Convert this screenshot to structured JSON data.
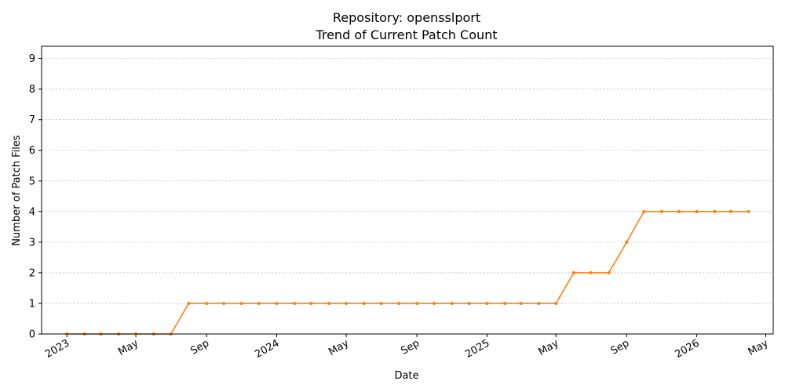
{
  "chart_data": {
    "type": "line",
    "title": "Repository: opensslport",
    "subtitle": "Trend of Current Patch Count",
    "xlabel": "Date",
    "ylabel": "Number of Patch Files",
    "ylim": [
      0,
      9.4
    ],
    "yticks": [
      0,
      1,
      2,
      3,
      4,
      5,
      6,
      7,
      8,
      9
    ],
    "xlim": [
      "2022-11-18",
      "2026-05-14"
    ],
    "xticks": [
      {
        "date": "2023-01-01",
        "label": "2023"
      },
      {
        "date": "2023-05-01",
        "label": "May"
      },
      {
        "date": "2023-09-01",
        "label": "Sep"
      },
      {
        "date": "2024-01-01",
        "label": "2024"
      },
      {
        "date": "2024-05-01",
        "label": "May"
      },
      {
        "date": "2024-09-01",
        "label": "Sep"
      },
      {
        "date": "2025-01-01",
        "label": "2025"
      },
      {
        "date": "2025-05-01",
        "label": "May"
      },
      {
        "date": "2025-09-01",
        "label": "Sep"
      },
      {
        "date": "2026-01-01",
        "label": "2026"
      },
      {
        "date": "2026-05-01",
        "label": "May"
      }
    ],
    "grid": "y-dashed",
    "series": [
      {
        "color": "#ff7f0e",
        "points": [
          {
            "x": "2023-01-01",
            "y": 0
          },
          {
            "x": "2023-02-01",
            "y": 0
          },
          {
            "x": "2023-03-01",
            "y": 0
          },
          {
            "x": "2023-04-01",
            "y": 0
          },
          {
            "x": "2023-05-01",
            "y": 0
          },
          {
            "x": "2023-06-01",
            "y": 0
          },
          {
            "x": "2023-07-01",
            "y": 0
          },
          {
            "x": "2023-08-01",
            "y": 1
          },
          {
            "x": "2023-09-01",
            "y": 1
          },
          {
            "x": "2023-10-01",
            "y": 1
          },
          {
            "x": "2023-11-01",
            "y": 1
          },
          {
            "x": "2023-12-01",
            "y": 1
          },
          {
            "x": "2024-01-01",
            "y": 1
          },
          {
            "x": "2024-02-01",
            "y": 1
          },
          {
            "x": "2024-03-01",
            "y": 1
          },
          {
            "x": "2024-04-01",
            "y": 1
          },
          {
            "x": "2024-05-01",
            "y": 1
          },
          {
            "x": "2024-06-01",
            "y": 1
          },
          {
            "x": "2024-07-01",
            "y": 1
          },
          {
            "x": "2024-08-01",
            "y": 1
          },
          {
            "x": "2024-09-01",
            "y": 1
          },
          {
            "x": "2024-10-01",
            "y": 1
          },
          {
            "x": "2024-11-01",
            "y": 1
          },
          {
            "x": "2024-12-01",
            "y": 1
          },
          {
            "x": "2025-01-01",
            "y": 1
          },
          {
            "x": "2025-02-01",
            "y": 1
          },
          {
            "x": "2025-03-01",
            "y": 1
          },
          {
            "x": "2025-04-01",
            "y": 1
          },
          {
            "x": "2025-05-01",
            "y": 1
          },
          {
            "x": "2025-06-01",
            "y": 2
          },
          {
            "x": "2025-07-01",
            "y": 2
          },
          {
            "x": "2025-08-01",
            "y": 2
          },
          {
            "x": "2025-09-01",
            "y": 3
          },
          {
            "x": "2025-10-01",
            "y": 4
          },
          {
            "x": "2025-11-01",
            "y": 4
          },
          {
            "x": "2025-12-01",
            "y": 4
          },
          {
            "x": "2026-01-01",
            "y": 4
          },
          {
            "x": "2026-02-01",
            "y": 4
          },
          {
            "x": "2026-03-01",
            "y": 4
          },
          {
            "x": "2026-04-01",
            "y": 4
          }
        ]
      }
    ]
  }
}
